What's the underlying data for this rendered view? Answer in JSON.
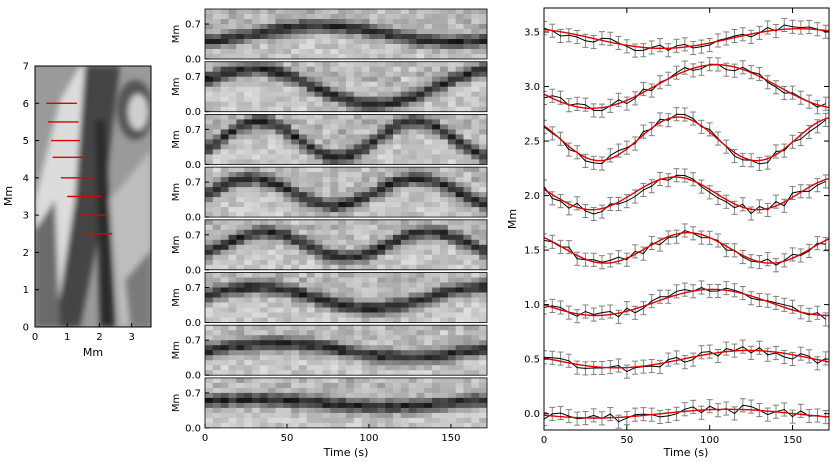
{
  "colors": {
    "fit": "#e00000",
    "data": "#000000",
    "errbar": "#808080",
    "slit": "#e00000"
  },
  "chart_data": [
    {
      "type": "image",
      "name": "context-image",
      "xlabel": "Mm",
      "ylabel": "Mm",
      "xlim": [
        0,
        3.6
      ],
      "ylim": [
        0,
        7
      ],
      "x_ticks": [
        0,
        1,
        2,
        3
      ],
      "y_ticks": [
        0,
        1,
        2,
        3,
        4,
        5,
        6,
        7
      ],
      "slits": [
        {
          "x0": 0.35,
          "x1": 1.3,
          "y": 6.0
        },
        {
          "x0": 0.4,
          "x1": 1.35,
          "y": 5.5
        },
        {
          "x0": 0.5,
          "x1": 1.4,
          "y": 5.0
        },
        {
          "x0": 0.55,
          "x1": 1.55,
          "y": 4.55
        },
        {
          "x0": 0.8,
          "x1": 1.85,
          "y": 4.0
        },
        {
          "x0": 1.0,
          "x1": 2.05,
          "y": 3.5
        },
        {
          "x0": 1.3,
          "x1": 2.2,
          "y": 3.0
        },
        {
          "x0": 1.5,
          "x1": 2.4,
          "y": 2.5
        }
      ]
    },
    {
      "type": "heatmap",
      "name": "time-distance-panels",
      "panels": 8,
      "xlabel": "Time (s)",
      "ylabel": "Mm",
      "xlim": [
        0,
        172
      ],
      "ylim": [
        0,
        1.0
      ],
      "x_ticks": [
        0,
        50,
        100,
        150
      ],
      "y_ticks": [
        "0.0",
        "0.7"
      ]
    },
    {
      "type": "line",
      "name": "displacement-fits",
      "xlabel": "Time (s)",
      "ylabel": "Mm",
      "xlim": [
        0,
        172
      ],
      "ylim": [
        -0.15,
        3.72
      ],
      "x_ticks": [
        0,
        50,
        100,
        150
      ],
      "y_ticks": [
        "0.0",
        "0.5",
        "1.0",
        "1.5",
        "2.0",
        "2.5",
        "3.0",
        "3.5"
      ],
      "error_bar": 0.06,
      "series": [
        {
          "name": "slit-1",
          "base": 3.44,
          "amp": 0.09,
          "period": 165,
          "phase": 2.0,
          "trend": 0.0
        },
        {
          "name": "slit-2",
          "base": 3.0,
          "amp": 0.2,
          "period": 150,
          "phase": 3.5,
          "trend": 0.0
        },
        {
          "name": "slit-3",
          "base": 2.52,
          "amp": 0.2,
          "period": 95,
          "phase": 2.5,
          "trend": 0.0
        },
        {
          "name": "slit-4",
          "base": 2.02,
          "amp": 0.15,
          "period": 100,
          "phase": 2.9,
          "trend": 0.0
        },
        {
          "name": "slit-5",
          "base": 1.52,
          "amp": 0.14,
          "period": 100,
          "phase": 2.4,
          "trend": 0.0
        },
        {
          "name": "slit-6",
          "base": 1.02,
          "amp": 0.12,
          "period": 140,
          "phase": 3.3,
          "trend": 0.0
        },
        {
          "name": "slit-7",
          "base": 0.5,
          "amp": 0.08,
          "period": 160,
          "phase": 3.0,
          "trend": 0.0
        },
        {
          "name": "slit-8",
          "base": 0.0,
          "amp": 0.04,
          "period": 160,
          "phase": 3.5,
          "trend": 0.0
        }
      ]
    }
  ]
}
